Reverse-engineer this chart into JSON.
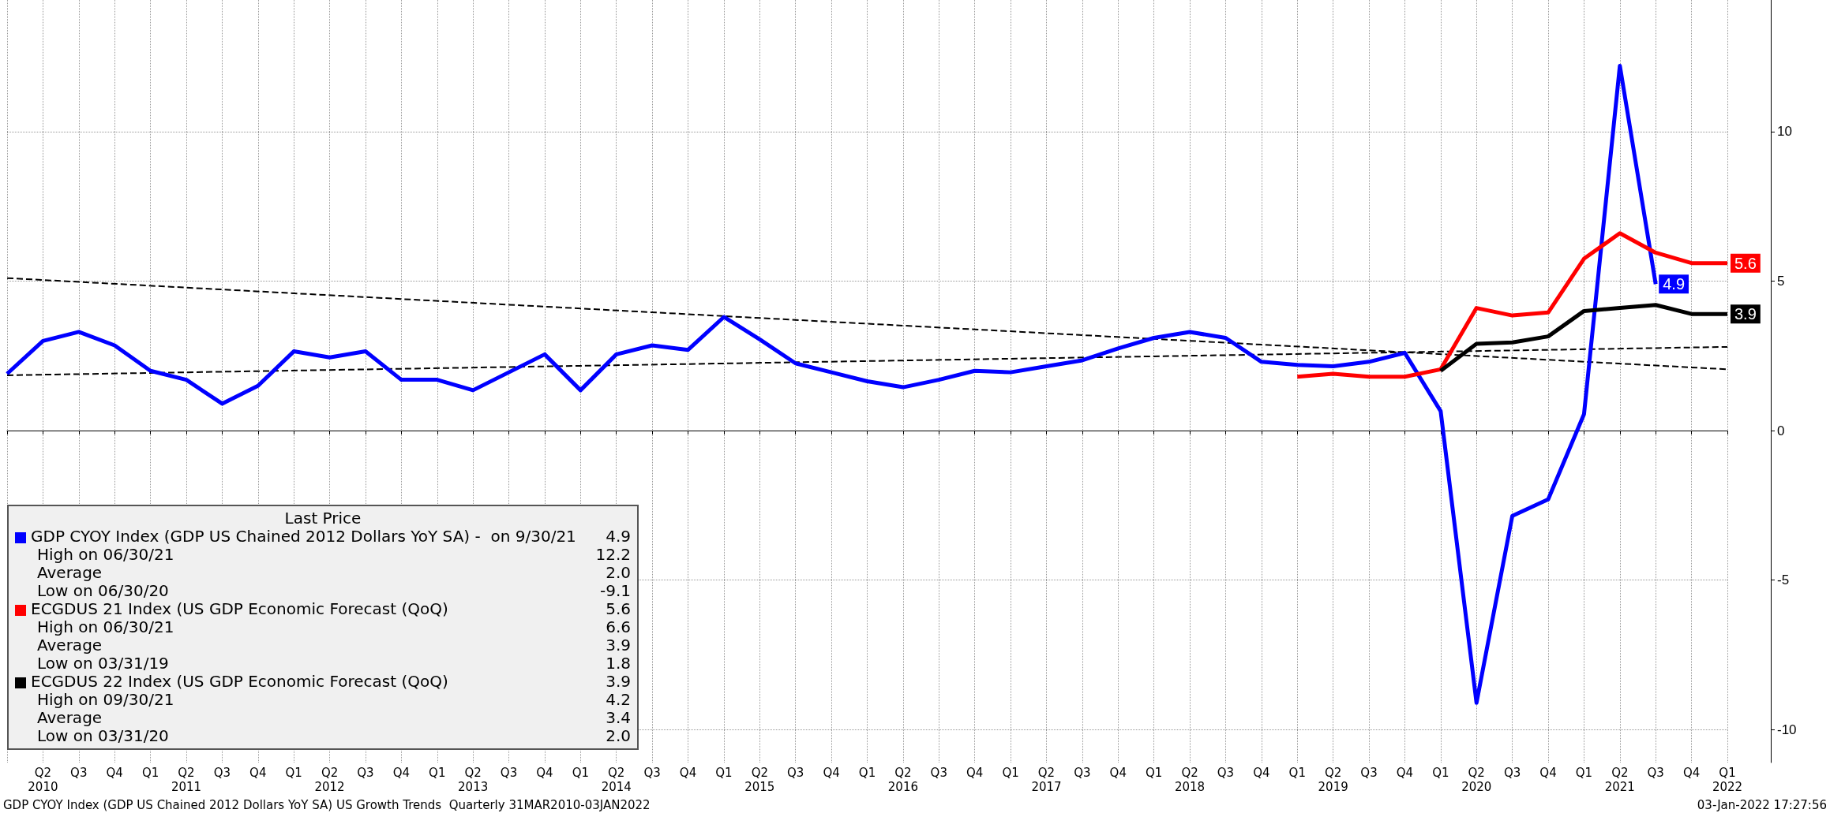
{
  "chart_data": {
    "type": "line",
    "categories": [
      null,
      "Q2\n2010",
      "Q3",
      "Q4",
      "Q1",
      "Q2\n2011",
      "Q3",
      "Q4",
      "Q1",
      "Q2\n2012",
      "Q3",
      "Q4",
      "Q1",
      "Q2\n2013",
      "Q3",
      "Q4",
      "Q1",
      "Q2\n2014",
      "Q3",
      "Q4",
      "Q1",
      "Q2\n2015",
      "Q3",
      "Q4",
      "Q1",
      "Q2\n2016",
      "Q3",
      "Q4",
      "Q1",
      "Q2\n2017",
      "Q3",
      "Q4",
      "Q1",
      "Q2\n2018",
      "Q3",
      "Q4",
      "Q1",
      "Q2\n2019",
      "Q3",
      "Q4",
      "Q1",
      "Q2\n2020",
      "Q3",
      "Q4",
      "Q1",
      "Q2\n2021",
      "Q3",
      "Q4",
      "Q1\n2022"
    ],
    "series": [
      {
        "name": "GDP CYOY Index (GDP US Chained 2012 Dollars YoY SA) -  on 9/30/21",
        "color": "#0000ff",
        "values": [
          1.9,
          3.0,
          3.3,
          2.85,
          2.0,
          1.7,
          0.9,
          1.5,
          2.65,
          2.45,
          2.65,
          1.7,
          1.7,
          1.35,
          1.95,
          2.55,
          1.35,
          2.55,
          2.85,
          2.7,
          3.8,
          3.05,
          2.25,
          1.95,
          1.65,
          1.45,
          1.7,
          2.0,
          1.95,
          2.15,
          2.35,
          2.75,
          3.1,
          3.3,
          3.1,
          2.3,
          2.2,
          2.15,
          2.3,
          2.6,
          0.65,
          -9.1,
          -2.85,
          -2.3,
          0.55,
          12.2,
          4.9,
          null,
          null
        ],
        "value_labels": [
          null,
          null,
          null,
          null,
          null,
          null,
          null,
          null,
          null,
          null,
          null,
          null,
          null,
          null,
          null,
          null,
          null,
          null,
          null,
          null,
          null,
          null,
          null,
          null,
          null,
          null,
          null,
          null,
          null,
          null,
          null,
          null,
          null,
          null,
          null,
          null,
          null,
          null,
          null,
          null,
          null,
          null,
          null,
          null,
          null,
          null,
          "4.9",
          null,
          null
        ]
      },
      {
        "name": "ECGDUS 21 Index (US GDP Economic Forecast (QoQ)",
        "color": "#ff0000",
        "values": [
          null,
          null,
          null,
          null,
          null,
          null,
          null,
          null,
          null,
          null,
          null,
          null,
          null,
          null,
          null,
          null,
          null,
          null,
          null,
          null,
          null,
          null,
          null,
          null,
          null,
          null,
          null,
          null,
          null,
          null,
          null,
          null,
          null,
          null,
          null,
          null,
          1.8,
          1.9,
          1.8,
          1.8,
          2.05,
          4.1,
          3.85,
          3.95,
          5.75,
          6.6,
          5.95,
          5.6,
          5.6
        ],
        "value_labels": [
          null,
          null,
          null,
          null,
          null,
          null,
          null,
          null,
          null,
          null,
          null,
          null,
          null,
          null,
          null,
          null,
          null,
          null,
          null,
          null,
          null,
          null,
          null,
          null,
          null,
          null,
          null,
          null,
          null,
          null,
          null,
          null,
          null,
          null,
          null,
          null,
          null,
          null,
          null,
          null,
          null,
          null,
          null,
          null,
          null,
          null,
          null,
          null,
          "5.6"
        ]
      },
      {
        "name": "ECGDUS 22 Index (US GDP Economic Forecast (QoQ)",
        "color": "#000000",
        "values": [
          null,
          null,
          null,
          null,
          null,
          null,
          null,
          null,
          null,
          null,
          null,
          null,
          null,
          null,
          null,
          null,
          null,
          null,
          null,
          null,
          null,
          null,
          null,
          null,
          null,
          null,
          null,
          null,
          null,
          null,
          null,
          null,
          null,
          null,
          null,
          null,
          null,
          null,
          null,
          null,
          2.0,
          2.9,
          2.95,
          3.15,
          4.0,
          4.1,
          4.2,
          3.9,
          3.9
        ],
        "value_labels": [
          null,
          null,
          null,
          null,
          null,
          null,
          null,
          null,
          null,
          null,
          null,
          null,
          null,
          null,
          null,
          null,
          null,
          null,
          null,
          null,
          null,
          null,
          null,
          null,
          null,
          null,
          null,
          null,
          null,
          null,
          null,
          null,
          null,
          null,
          null,
          null,
          null,
          null,
          null,
          null,
          null,
          null,
          null,
          null,
          null,
          null,
          null,
          null,
          "3.9"
        ]
      },
      {
        "type": "line",
        "color": "#000000",
        "line_style": "dashed",
        "x": [
          null,
          "Q1\n2022"
        ],
        "values": [
          5.1,
          2.05
        ]
      },
      {
        "type": "line",
        "color": "#000000",
        "line_style": "dashed",
        "x": [
          null,
          "Q1\n2022"
        ],
        "values": [
          1.85,
          2.8
        ]
      }
    ],
    "ylim": [
      -11.1,
      14.4
    ],
    "yticks": [
      -10,
      -5,
      0,
      5,
      10
    ],
    "grid": true,
    "legend": "bottom left",
    "legend_title": "Last Price",
    "line_style": "solid",
    "annotations": [
      "High on 06/30/21 12.2",
      "Average 2.0",
      "Low on 06/30/20 -9.1",
      "High on 06/30/21 6.6",
      "Average 3.9",
      "Low on 03/31/19 1.8",
      "High on 09/30/21 4.2",
      "Average 3.4",
      "Low on 03/31/20 2.0",
      "GDP CYOY Index (GDP US Chained 2012 Dollars YoY SA) US Growth Trends  Quarterly 31MAR2010-03JAN2022",
      "03-Jan-2022 17:27:56"
    ]
  }
}
